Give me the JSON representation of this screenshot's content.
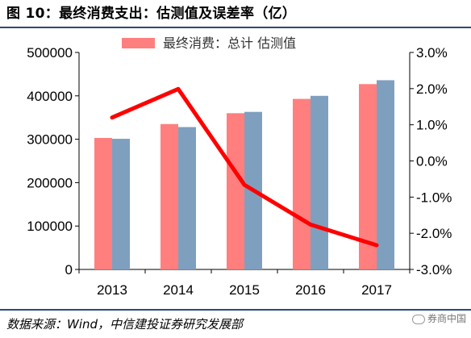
{
  "header": {
    "title": "图 10：最终消费支出：估测值及误差率（亿）"
  },
  "footer": {
    "source": "数据来源：Wind，中信建投证券研究发展部",
    "watermark": "券商中国"
  },
  "colors": {
    "bar_total": "#FF7F7F",
    "bar_estimate": "#7F9FBF",
    "line": "#FF0000",
    "title_rule": "#2B4A7A"
  },
  "chart_data": {
    "type": "bar",
    "categories": [
      "2013",
      "2014",
      "2015",
      "2016",
      "2017"
    ],
    "series": [
      {
        "name": "最终消费：总计",
        "type": "bar",
        "axis": "left",
        "values": [
          303000,
          335000,
          360000,
          393000,
          427000
        ]
      },
      {
        "name": "估测值",
        "type": "bar",
        "axis": "left",
        "values": [
          301000,
          328000,
          363000,
          400000,
          436000
        ]
      },
      {
        "name": "",
        "type": "line",
        "axis": "right",
        "values": [
          0.012,
          0.0199,
          -0.0066,
          -0.0176,
          -0.0233
        ]
      }
    ],
    "y_left": {
      "ylim": [
        0,
        500000
      ],
      "ticks": [
        "0",
        "100000",
        "200000",
        "300000",
        "400000",
        "500000"
      ]
    },
    "y_right": {
      "ylim": [
        -0.03,
        0.03
      ],
      "ticks": [
        "-3.0%",
        "-2.0%",
        "-1.0%",
        "0.0%",
        "1.0%",
        "2.0%",
        "3.0%"
      ]
    },
    "legend": {
      "position": "top",
      "text": "最终消费：总计  估测值"
    },
    "grid": false
  }
}
